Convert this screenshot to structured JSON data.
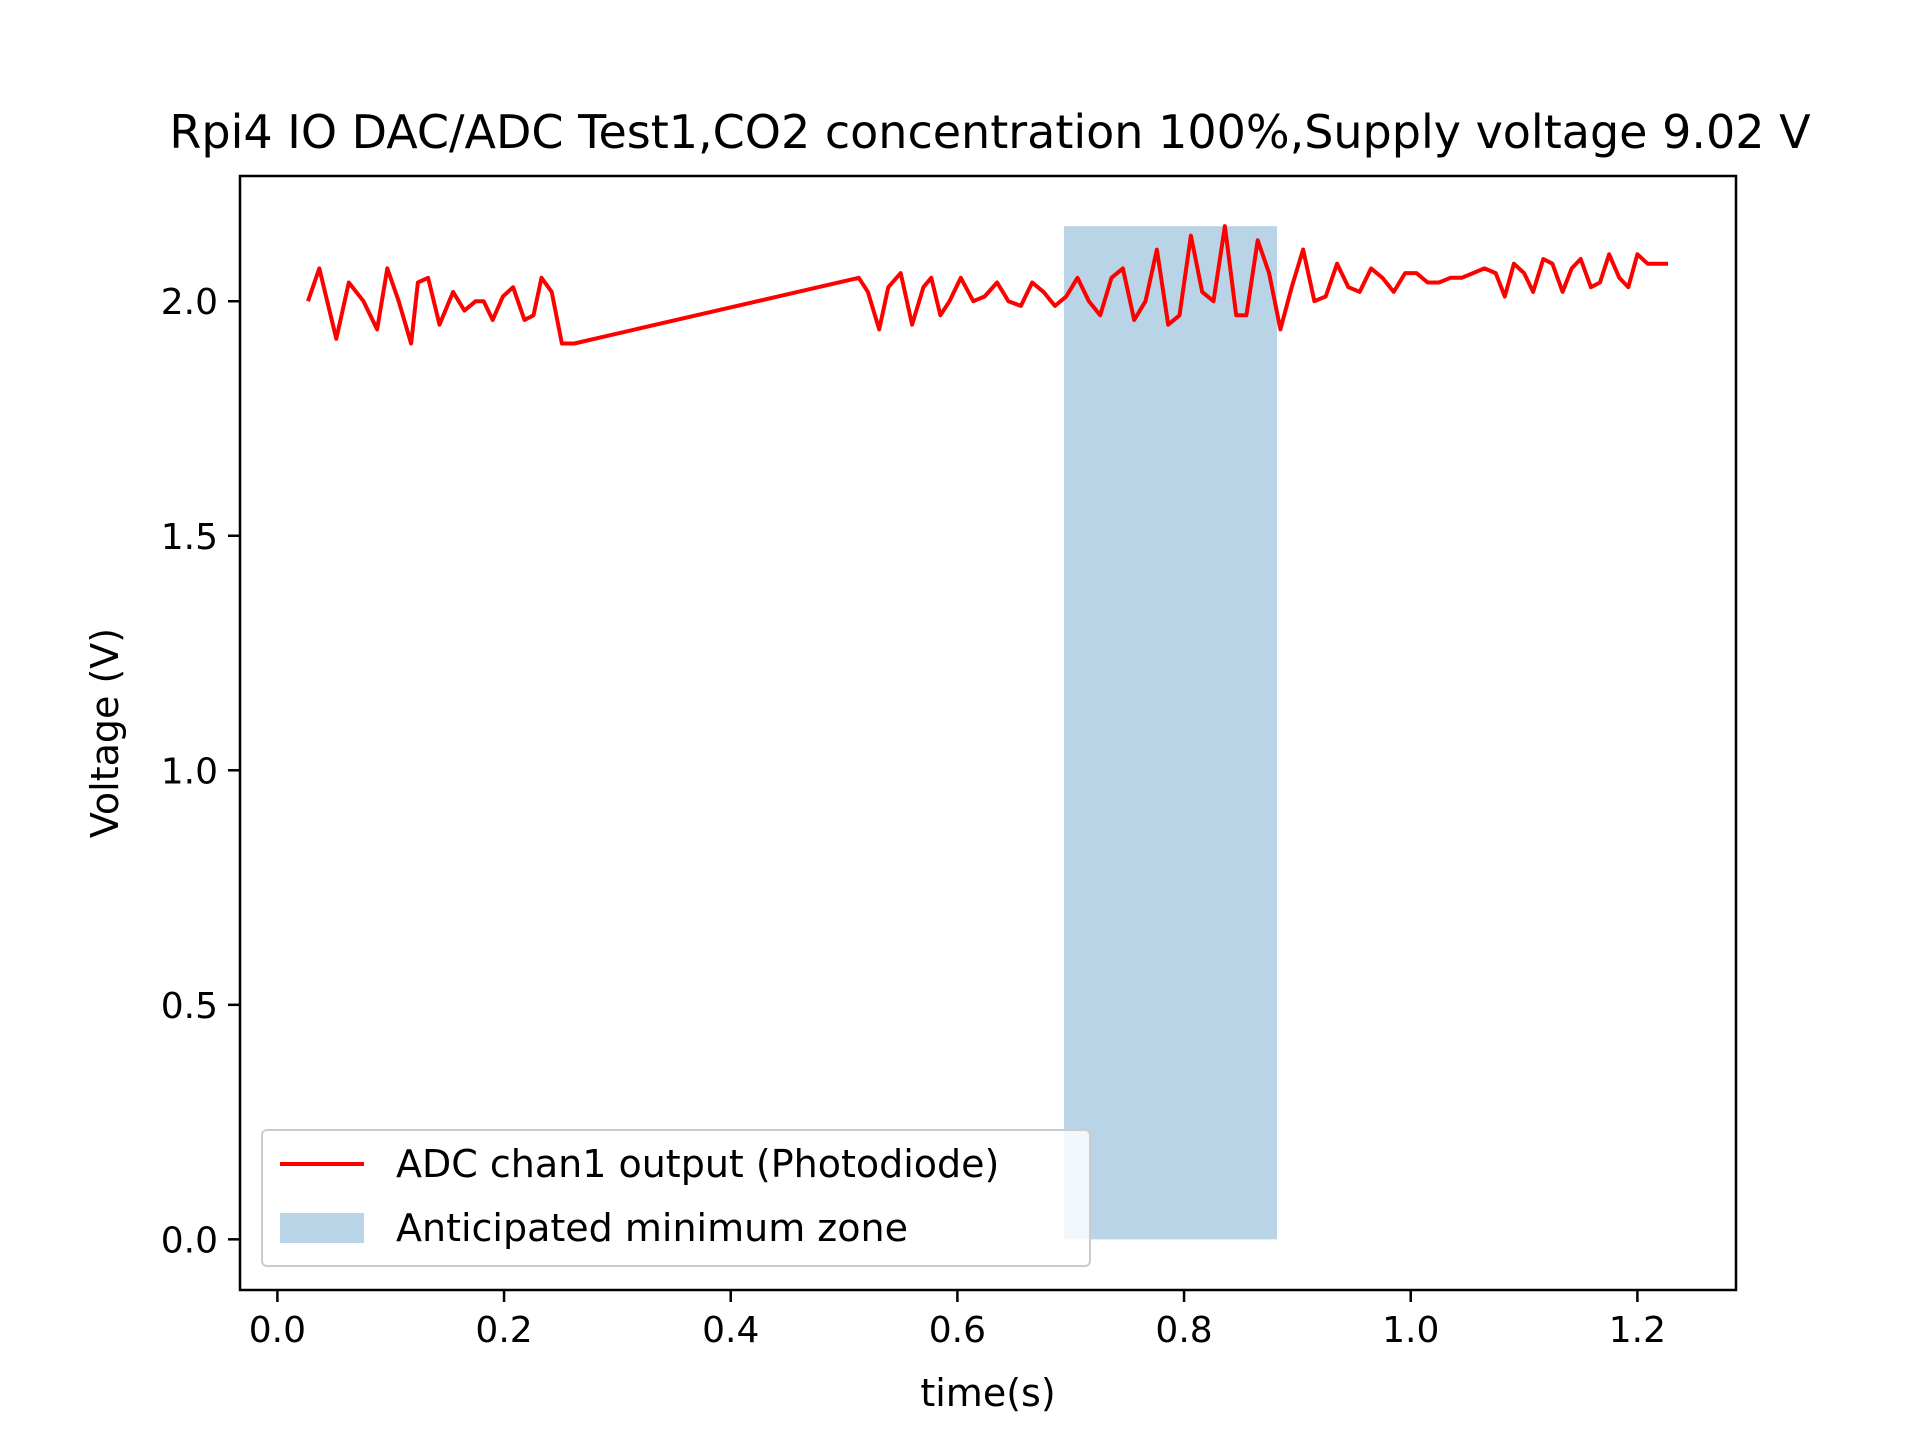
{
  "chart_data": {
    "type": "line",
    "title": "Rpi4 IO DAC/ADC Test1,CO2 concentration 100%,Supply voltage 9.02 V",
    "xlabel": "time(s)",
    "ylabel": "Voltage (V)",
    "xlim": [
      -0.033,
      1.287
    ],
    "ylim": [
      -0.108,
      2.267
    ],
    "xticks": [
      0.0,
      0.2,
      0.4,
      0.6,
      0.8,
      1.0,
      1.2
    ],
    "xtick_labels": [
      "0.0",
      "0.2",
      "0.4",
      "0.6",
      "0.8",
      "1.0",
      "1.2"
    ],
    "yticks": [
      0.0,
      0.5,
      1.0,
      1.5,
      2.0
    ],
    "ytick_labels": [
      "0.0",
      "0.5",
      "1.0",
      "1.5",
      "2.0"
    ],
    "grid": false,
    "legend_position": "lower-left",
    "series": [
      {
        "name": "ADC chan1 output  (Photodiode)",
        "color": "#ff0000",
        "type": "line",
        "x": [
          0.027,
          0.037,
          0.052,
          0.063,
          0.076,
          0.088,
          0.097,
          0.107,
          0.118,
          0.124,
          0.133,
          0.143,
          0.155,
          0.165,
          0.175,
          0.182,
          0.19,
          0.199,
          0.208,
          0.218,
          0.226,
          0.233,
          0.242,
          0.251,
          0.262,
          0.513,
          0.521,
          0.531,
          0.539,
          0.55,
          0.56,
          0.57,
          0.577,
          0.585,
          0.593,
          0.603,
          0.614,
          0.624,
          0.635,
          0.645,
          0.656,
          0.666,
          0.676,
          0.686,
          0.696,
          0.706,
          0.716,
          0.726,
          0.736,
          0.746,
          0.756,
          0.766,
          0.776,
          0.786,
          0.796,
          0.806,
          0.816,
          0.826,
          0.836,
          0.846,
          0.855,
          0.865,
          0.875,
          0.885,
          0.895,
          0.905,
          0.915,
          0.925,
          0.935,
          0.945,
          0.955,
          0.965,
          0.975,
          0.985,
          0.995,
          1.005,
          1.015,
          1.025,
          1.035,
          1.045,
          1.055,
          1.065,
          1.075,
          1.083,
          1.091,
          1.1,
          1.108,
          1.117,
          1.125,
          1.134,
          1.142,
          1.15,
          1.159,
          1.167,
          1.175,
          1.184,
          1.192,
          1.2,
          1.209,
          1.217,
          1.227
        ],
        "y": [
          2.0,
          2.07,
          1.92,
          2.04,
          2.0,
          1.94,
          2.07,
          2.0,
          1.91,
          2.04,
          2.05,
          1.95,
          2.02,
          1.98,
          2.0,
          2.0,
          1.96,
          2.01,
          2.03,
          1.96,
          1.97,
          2.05,
          2.02,
          1.91,
          1.91,
          2.05,
          2.02,
          1.94,
          2.03,
          2.06,
          1.95,
          2.03,
          2.05,
          1.97,
          2.0,
          2.05,
          2.0,
          2.01,
          2.04,
          2.0,
          1.99,
          2.04,
          2.02,
          1.99,
          2.01,
          2.05,
          2.0,
          1.97,
          2.05,
          2.07,
          1.96,
          2.0,
          2.11,
          1.95,
          1.97,
          2.14,
          2.02,
          2.0,
          2.16,
          1.97,
          1.97,
          2.13,
          2.06,
          1.94,
          2.03,
          2.11,
          2.0,
          2.01,
          2.08,
          2.03,
          2.02,
          2.07,
          2.05,
          2.02,
          2.06,
          2.06,
          2.04,
          2.04,
          2.05,
          2.05,
          2.06,
          2.07,
          2.06,
          2.01,
          2.08,
          2.06,
          2.02,
          2.09,
          2.08,
          2.02,
          2.07,
          2.09,
          2.03,
          2.04,
          2.1,
          2.05,
          2.03,
          2.1,
          2.08,
          2.08,
          2.08
        ]
      },
      {
        "name": "Anticipated minimum zone",
        "color": "#bad4e7",
        "type": "area",
        "x_range": [
          0.694,
          0.882
        ],
        "y_range": [
          0.0,
          2.16
        ]
      }
    ]
  }
}
